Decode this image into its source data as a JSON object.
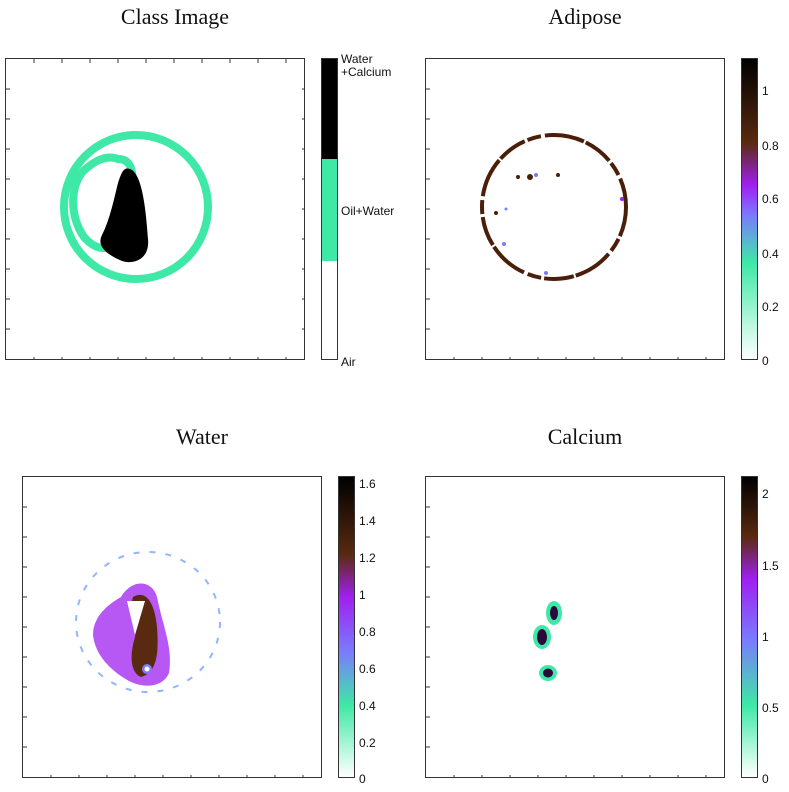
{
  "panels": {
    "class_image": {
      "title": "Class Image",
      "colorbar_labels": [
        "Water\n+Calcium",
        "Oil+Water",
        "Air"
      ],
      "classes": [
        {
          "name": "Water\n+Calcium",
          "color": "#000000"
        },
        {
          "name": "Oil+Water",
          "color": "#3ee8a6"
        },
        {
          "name": "Air",
          "color": "#ffffff"
        }
      ]
    },
    "adipose": {
      "title": "Adipose",
      "colorbar_ticks": [
        "0",
        "0.2",
        "0.4",
        "0.6",
        "0.8",
        "1"
      ],
      "range": [
        0,
        1.1
      ]
    },
    "water": {
      "title": "Water",
      "colorbar_ticks": [
        "0",
        "0.2",
        "0.4",
        "0.6",
        "0.8",
        "1",
        "1.2",
        "1.4",
        "1.6"
      ],
      "range": [
        0,
        1.62
      ]
    },
    "calcium": {
      "title": "Calcium",
      "colorbar_ticks": [
        "0",
        "0.5",
        "1",
        "1.5",
        "2"
      ],
      "range": [
        0,
        2.1
      ]
    }
  },
  "colormap": [
    "#ffffff",
    "#3ee8a6",
    "#7a7aff",
    "#a020f0",
    "#5a2a10",
    "#000000"
  ]
}
